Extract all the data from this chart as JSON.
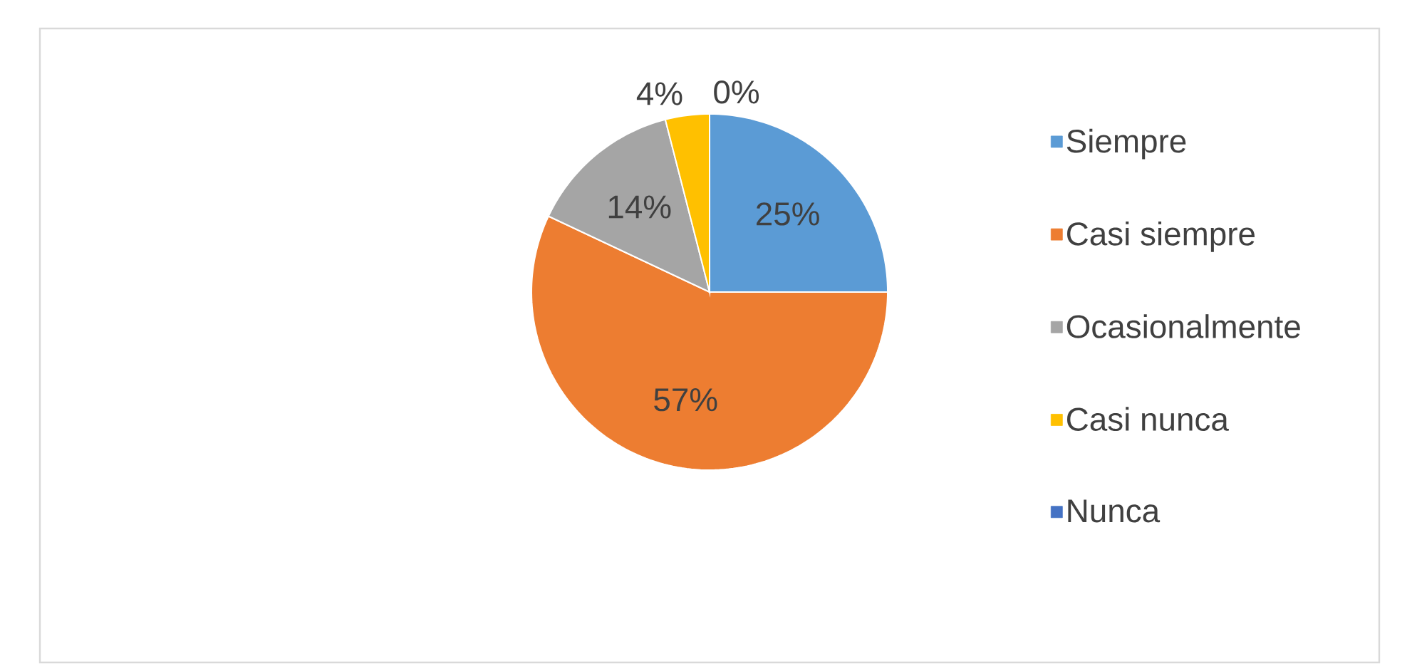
{
  "chart_data": {
    "type": "pie",
    "categories": [
      "Siempre",
      "Casi siempre",
      "Ocasionalmente",
      "Casi nunca",
      "Nunca"
    ],
    "values": [
      25,
      57,
      14,
      4,
      0
    ],
    "colors": [
      "#5b9bd5",
      "#ed7d31",
      "#a5a5a5",
      "#ffc000",
      "#4472c4"
    ],
    "value_labels": [
      "25%",
      "57%",
      "14%",
      "4%",
      "0%"
    ],
    "legend": "right"
  }
}
